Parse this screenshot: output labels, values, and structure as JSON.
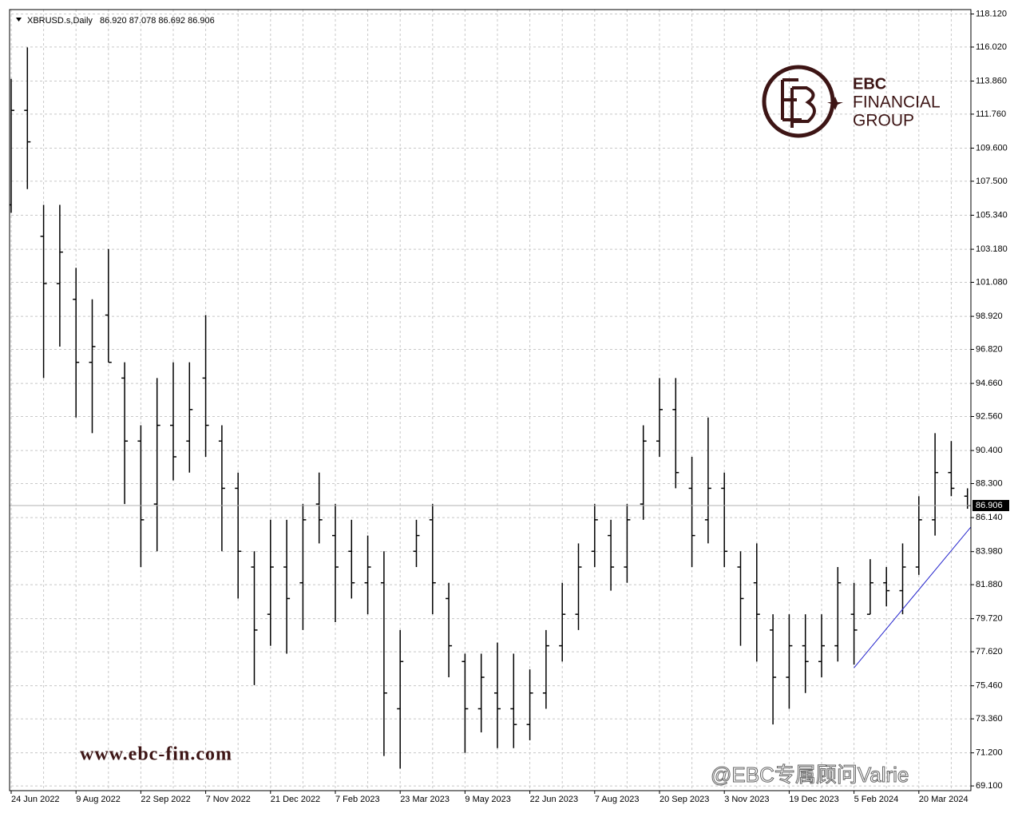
{
  "chart_data": {
    "type": "ohlc",
    "header": {
      "symbol": "XBRUSD.s,Daily",
      "open": {
        "value": 86.92,
        "label": "86.920"
      },
      "high": {
        "value": 87.078,
        "label": "87.078"
      },
      "low": {
        "value": 86.692,
        "label": "86.692"
      },
      "close": {
        "value": 86.906,
        "label": "86.906"
      }
    },
    "color": "#000000",
    "categories": [
      "24 Jun 2022",
      null,
      null,
      null,
      "9 Aug 2022",
      null,
      null,
      null,
      "22 Sep 2022",
      null,
      null,
      null,
      "7 Nov 2022",
      null,
      null,
      null,
      "21 Dec 2022",
      null,
      null,
      null,
      "7 Feb 2023",
      null,
      null,
      null,
      "23 Mar 2023",
      null,
      null,
      null,
      "9 May 2023",
      null,
      null,
      null,
      "22 Jun 2023",
      null,
      null,
      null,
      "7 Aug 2023",
      null,
      null,
      null,
      "20 Sep 2023",
      null,
      null,
      null,
      "3 Nov 2023",
      null,
      null,
      null,
      "19 Dec 2023",
      null,
      null,
      null,
      "5 Feb 2024",
      null,
      null,
      null,
      "20 Mar 2024",
      null,
      null,
      null
    ],
    "open": [
      106,
      112,
      104,
      101,
      100,
      96,
      99,
      95,
      91,
      87,
      92,
      91,
      95,
      91,
      88,
      83,
      80,
      83,
      82,
      87,
      85,
      84,
      82,
      82,
      74,
      84,
      86,
      81,
      77,
      74,
      75,
      74,
      73,
      75,
      78,
      80,
      84,
      85,
      83,
      87,
      91,
      93,
      88,
      86,
      88,
      83,
      82,
      79,
      76,
      78,
      77,
      78,
      80,
      80,
      82,
      81.5,
      83,
      86,
      89,
      87.5
    ],
    "high": [
      114,
      116,
      106,
      106,
      102,
      100,
      103.2,
      96,
      92,
      95,
      96,
      96,
      99,
      92,
      89,
      84,
      86,
      86,
      87,
      89,
      87,
      86,
      85,
      84,
      79,
      86,
      87,
      82,
      77.5,
      77.5,
      78.2,
      77.5,
      76.5,
      79,
      82,
      84.5,
      87,
      86,
      87,
      92,
      95,
      95,
      90,
      92.5,
      89,
      84,
      84.5,
      80,
      80,
      80,
      80,
      83,
      82,
      83.5,
      83,
      84.5,
      87.5,
      91.5,
      91,
      88
    ],
    "low": [
      105.5,
      107,
      95,
      97,
      92.5,
      91.5,
      96,
      87,
      83,
      84,
      88.5,
      89,
      90,
      84,
      81,
      75.5,
      78,
      77.5,
      79,
      84.5,
      79.5,
      81,
      80,
      71,
      70.2,
      83,
      80,
      76,
      71.2,
      72.5,
      71.5,
      71.5,
      72,
      74,
      77,
      79,
      83,
      81.5,
      82,
      86,
      90,
      88,
      83,
      84.5,
      83,
      78,
      77,
      73,
      74,
      75,
      76,
      77,
      76.8,
      80,
      80.5,
      80,
      82.5,
      85,
      87.5,
      86.7
    ],
    "close": [
      112,
      110,
      101,
      103,
      96,
      97,
      96,
      91,
      86,
      92,
      90,
      93,
      92,
      88,
      84,
      79,
      83,
      81,
      86,
      86,
      83,
      82,
      83,
      75,
      77,
      85,
      82,
      78,
      74,
      76,
      74,
      73,
      75,
      78,
      80,
      83,
      86,
      83,
      86,
      91,
      93,
      89,
      85,
      88,
      84,
      81,
      80,
      76,
      78,
      77,
      78,
      82,
      79,
      82,
      81.5,
      83,
      86,
      89,
      88,
      86.9
    ],
    "ylim": [
      68.8,
      118.4
    ],
    "yticks": [
      {
        "value": 118.12,
        "label": "118.120"
      },
      {
        "value": 116.02,
        "label": "116.020"
      },
      {
        "value": 113.86,
        "label": "113.860"
      },
      {
        "value": 111.76,
        "label": "111.760"
      },
      {
        "value": 109.6,
        "label": "109.600"
      },
      {
        "value": 107.5,
        "label": "107.500"
      },
      {
        "value": 105.34,
        "label": "105.340"
      },
      {
        "value": 103.18,
        "label": "103.180"
      },
      {
        "value": 101.08,
        "label": "101.080"
      },
      {
        "value": 98.92,
        "label": "98.920"
      },
      {
        "value": 96.82,
        "label": "96.820"
      },
      {
        "value": 94.66,
        "label": "94.660"
      },
      {
        "value": 92.56,
        "label": "92.560"
      },
      {
        "value": 90.4,
        "label": "90.400"
      },
      {
        "value": 88.3,
        "label": "88.300"
      },
      {
        "value": 86.14,
        "label": "86.140"
      },
      {
        "value": 83.98,
        "label": "83.980"
      },
      {
        "value": 81.88,
        "label": "81.880"
      },
      {
        "value": 79.72,
        "label": "79.720"
      },
      {
        "value": 77.62,
        "label": "77.620"
      },
      {
        "value": 75.46,
        "label": "75.460"
      },
      {
        "value": 73.36,
        "label": "73.360"
      },
      {
        "value": 71.2,
        "label": "71.200"
      },
      {
        "value": 69.1,
        "label": "69.100"
      }
    ],
    "grid": true,
    "last_price": {
      "value": 86.906,
      "label": "86.906"
    },
    "trendline": {
      "from_index": 52,
      "from": 76.6,
      "to_index": 59.5,
      "to": 85.9,
      "color": "#2222cc"
    },
    "logo": {
      "name": "EBC",
      "line1": "FINANCIAL",
      "line2": "GROUP"
    },
    "watermark": "www.ebc-fin.com",
    "credit": "@EBC专属顾问Valrie"
  }
}
